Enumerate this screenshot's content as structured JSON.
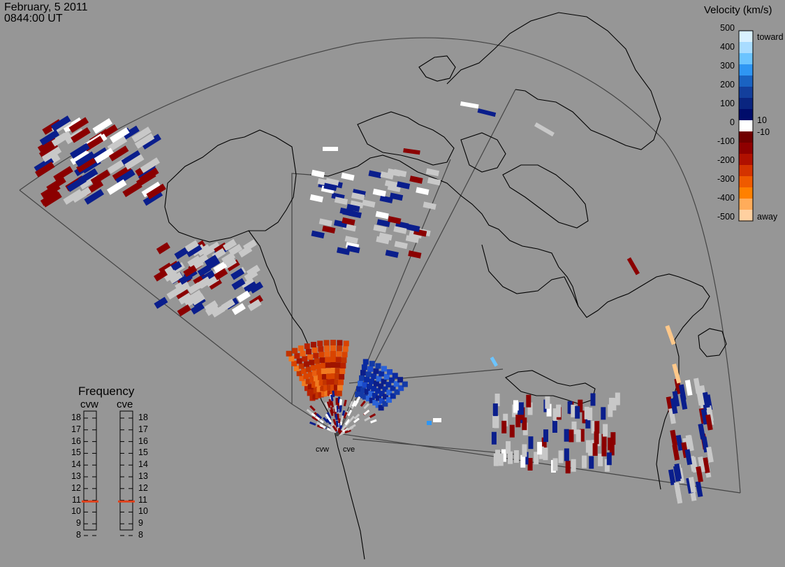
{
  "header": {
    "date": "February, 5 2011",
    "time": "0844:00 UT"
  },
  "velocity_legend": {
    "title": "Velocity (km/s)",
    "ticks": [
      "500",
      "400",
      "300",
      "200",
      "100",
      "0",
      "-100",
      "-200",
      "-300",
      "-400",
      "-500"
    ],
    "toward_label": "toward",
    "away_label": "away",
    "threshold_pos": "10",
    "threshold_neg": "-10",
    "scale_colors": [
      "#d9f1ff",
      "#a9dcff",
      "#6cc4ff",
      "#2f96f3",
      "#1a63c2",
      "#133f9c",
      "#0a2580",
      "#000c6a",
      "#ffffff",
      "#700000",
      "#8f0000",
      "#b01000",
      "#d43300",
      "#ef5a00",
      "#ff8000",
      "#ffac5a",
      "#ffd0a0"
    ]
  },
  "frequency_panel": {
    "title": "Frequency",
    "radars": [
      "cvw",
      "cve"
    ],
    "scale": [
      "18",
      "17",
      "16",
      "15",
      "14",
      "13",
      "12",
      "11",
      "10",
      "9",
      "8"
    ],
    "cvw_frequency_mhz": 10.9,
    "cve_frequency_mhz": 10.9,
    "marker_color": "#e0401a"
  },
  "sites": {
    "west": "cvw",
    "east": "cve"
  },
  "colors": {
    "background": "#969696",
    "coast": "#000000",
    "toward_dark": "#0a1e8c",
    "away_dark": "#8b0000",
    "ground_scatter": "#c8c8c8",
    "low_velocity": "#ffffff"
  }
}
